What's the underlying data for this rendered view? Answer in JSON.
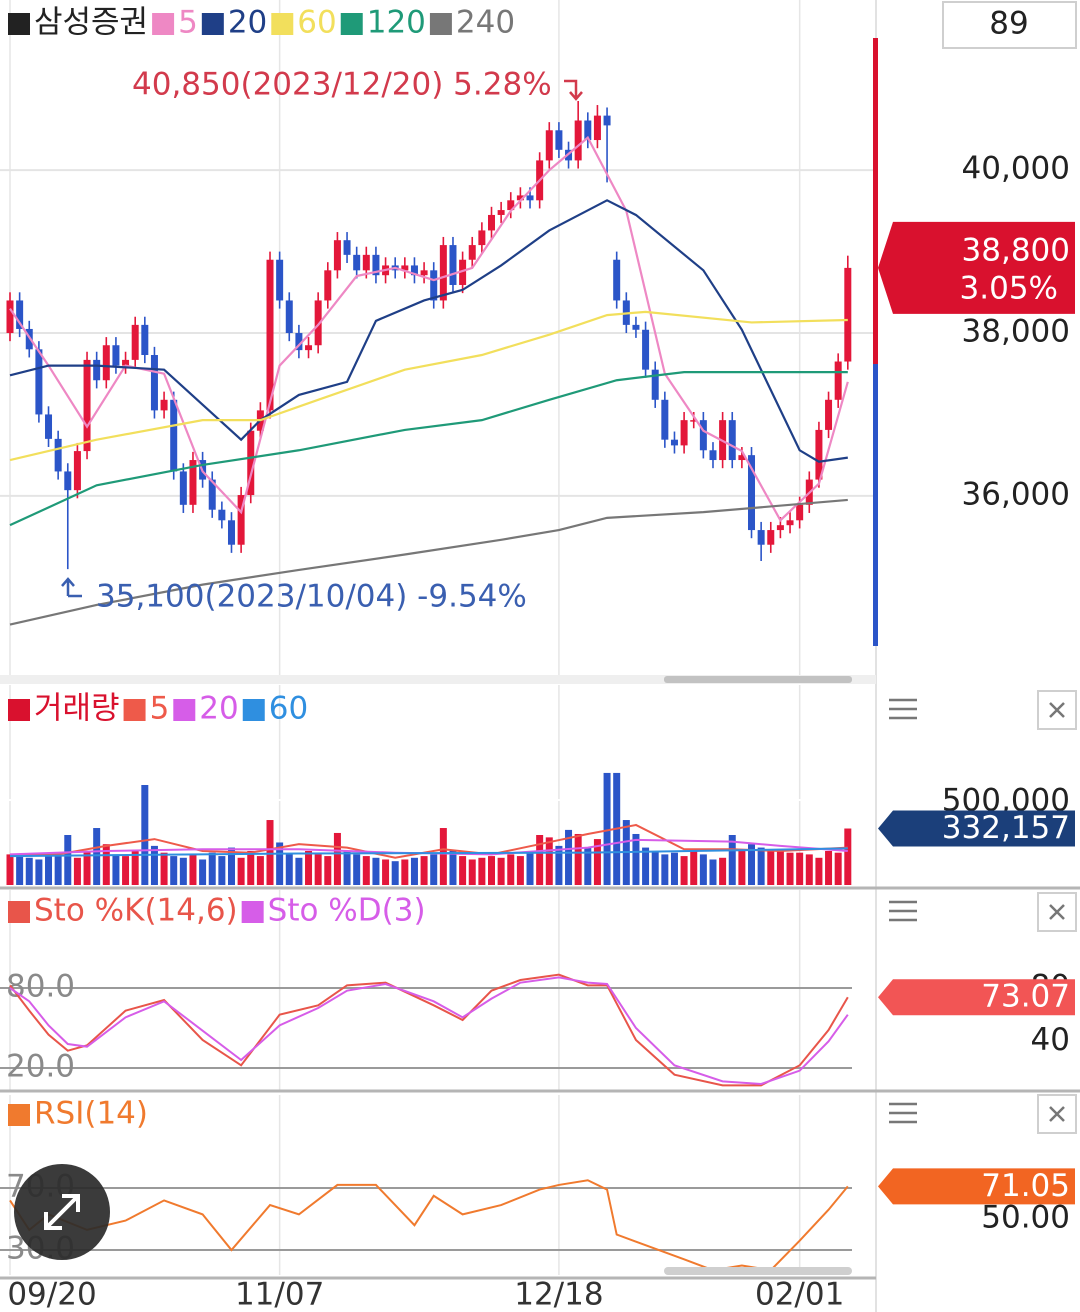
{
  "period": "89",
  "chart_data": [
    {
      "type": "candlestick",
      "name": "삼성증권",
      "name_color": "#222222",
      "up_color": "#e3173a",
      "down_color": "#2b55c8",
      "grid_color": "#e4e4e4",
      "ylim": [
        33800,
        42090
      ],
      "yticks": [
        {
          "value": 36000,
          "label": "36,000"
        },
        {
          "value": 38000,
          "label": "38,000"
        },
        {
          "value": 40000,
          "label": "40,000"
        }
      ],
      "ytick_side": "right",
      "open": [
        38000,
        38400,
        38050,
        37800,
        37000,
        36700,
        36300,
        36070,
        36550,
        37670,
        37420,
        37850,
        37600,
        37670,
        38100,
        37730,
        37050,
        37180,
        36300,
        35890,
        36440,
        36200,
        35830,
        35700,
        35400,
        36010,
        36800,
        37050,
        38900,
        38400,
        38000,
        37790,
        37850,
        38400,
        38770,
        39140,
        38960,
        38770,
        38960,
        38710,
        38830,
        38770,
        38830,
        38710,
        38770,
        38400,
        39080,
        38590,
        38900,
        39080,
        39260,
        39450,
        39510,
        39630,
        39690,
        39630,
        40120,
        40490,
        40250,
        40120,
        40610,
        40370,
        40670,
        38900,
        38400,
        38100,
        38040,
        37550,
        37180,
        36690,
        36620,
        36930,
        36930,
        36560,
        36440,
        36930,
        36440,
        36500,
        35580,
        35400,
        35580,
        35640,
        35700,
        35890,
        36200,
        36810,
        37180,
        37650
      ],
      "high": [
        38500,
        38500,
        38150,
        37900,
        37100,
        36800,
        36400,
        36650,
        37770,
        37770,
        37950,
        37950,
        37770,
        38200,
        38200,
        37830,
        37280,
        37280,
        36400,
        36540,
        36540,
        36300,
        35930,
        35800,
        36110,
        36900,
        37150,
        39000,
        39000,
        38500,
        38100,
        37950,
        38500,
        38870,
        39240,
        39240,
        39060,
        39060,
        39060,
        38930,
        38930,
        38930,
        38930,
        38870,
        38870,
        39180,
        39180,
        39000,
        39180,
        39360,
        39550,
        39610,
        39730,
        39790,
        39790,
        40220,
        40590,
        40590,
        40350,
        40850,
        40710,
        40800,
        40770,
        39000,
        38500,
        38200,
        38140,
        37650,
        37280,
        36790,
        37030,
        37030,
        37030,
        36660,
        37030,
        37030,
        36600,
        36600,
        35680,
        35680,
        35740,
        35800,
        35990,
        36300,
        36910,
        37280,
        37750,
        38950
      ],
      "low": [
        37900,
        37950,
        37700,
        36900,
        36600,
        36200,
        35100,
        35970,
        36450,
        37320,
        37320,
        37500,
        37500,
        37570,
        37630,
        36950,
        36950,
        36200,
        35790,
        35790,
        36100,
        35730,
        35600,
        35300,
        35300,
        35910,
        36700,
        36950,
        38300,
        37900,
        37690,
        37690,
        37750,
        38300,
        38670,
        38860,
        38670,
        38670,
        38610,
        38610,
        38670,
        38670,
        38610,
        38610,
        38300,
        38300,
        38490,
        38490,
        38800,
        38980,
        39160,
        39350,
        39410,
        39530,
        39530,
        39530,
        40020,
        40150,
        40020,
        40020,
        40270,
        40270,
        39850,
        38300,
        38000,
        37940,
        37450,
        37080,
        36590,
        36520,
        36520,
        36830,
        36460,
        36340,
        36340,
        36340,
        36340,
        35480,
        35200,
        35300,
        35480,
        35540,
        35600,
        35790,
        36100,
        36710,
        37080,
        37550
      ],
      "close": [
        38400,
        38050,
        37800,
        37000,
        36700,
        36300,
        36070,
        36550,
        37670,
        37420,
        37850,
        37600,
        37670,
        38100,
        37730,
        37050,
        37180,
        36300,
        35890,
        36440,
        36200,
        35830,
        35700,
        35400,
        36010,
        36800,
        37050,
        38900,
        38400,
        38000,
        37790,
        37850,
        38400,
        38770,
        39140,
        38960,
        38770,
        38960,
        38710,
        38830,
        38770,
        38830,
        38710,
        38770,
        38400,
        39080,
        38590,
        38900,
        39080,
        39260,
        39450,
        39510,
        39630,
        39690,
        39630,
        40120,
        40490,
        40250,
        40120,
        40610,
        40370,
        40670,
        40550,
        38400,
        38100,
        38040,
        37550,
        37180,
        36690,
        36620,
        36930,
        36930,
        36560,
        36440,
        36930,
        36440,
        36500,
        35580,
        35400,
        35580,
        35640,
        35700,
        35890,
        36200,
        36810,
        37180,
        37650,
        38800
      ],
      "series": [
        {
          "name": "5",
          "color": "#ee88c4",
          "x": [
            0,
            4,
            8,
            12,
            16,
            20,
            24,
            28,
            32,
            36,
            40,
            44,
            48,
            52,
            56,
            60,
            64,
            68,
            72,
            76,
            80,
            84,
            87
          ],
          "values": [
            38300,
            37600,
            36850,
            37600,
            37500,
            36300,
            35800,
            37600,
            38100,
            38700,
            38800,
            38650,
            38800,
            39500,
            40000,
            40400,
            39500,
            37500,
            36800,
            36550,
            35700,
            36150,
            37400
          ]
        },
        {
          "name": "20",
          "color": "#1f3f87",
          "x": [
            0,
            4,
            9,
            16,
            20,
            24,
            26,
            30,
            35,
            38,
            43,
            47,
            51,
            56,
            62,
            65,
            72,
            76,
            79,
            82,
            84,
            87
          ],
          "values": [
            37480,
            37600,
            37600,
            37550,
            37120,
            36690,
            36930,
            37240,
            37400,
            38150,
            38400,
            38530,
            38830,
            39260,
            39630,
            39450,
            38770,
            38040,
            37300,
            36560,
            36420,
            36470
          ]
        },
        {
          "name": "60",
          "color": "#f2df5c",
          "x": [
            0,
            9,
            20,
            26,
            32,
            41,
            49,
            56,
            62,
            66,
            77,
            87
          ],
          "values": [
            36440,
            36690,
            36930,
            36930,
            37180,
            37550,
            37730,
            37980,
            38220,
            38260,
            38130,
            38160
          ]
        },
        {
          "name": "120",
          "color": "#1f9a78",
          "x": [
            0,
            9,
            20,
            30,
            41,
            49,
            56,
            63,
            70,
            87
          ],
          "values": [
            35640,
            36130,
            36380,
            36560,
            36810,
            36930,
            37180,
            37420,
            37520,
            37520
          ]
        },
        {
          "name": "240",
          "color": "#777777",
          "x": [
            0,
            9,
            20,
            30,
            41,
            51,
            57,
            62,
            72,
            87
          ],
          "values": [
            34420,
            34660,
            34910,
            35090,
            35280,
            35460,
            35580,
            35730,
            35800,
            35950
          ]
        }
      ],
      "annotations": [
        "40,850(2023/12/20) 5.28%",
        "35,100(2023/10/04) -9.54%"
      ],
      "last": {
        "value": 38800,
        "label": "38,800"
      },
      "change": "3.05%",
      "badge_color": "#d9112e"
    },
    {
      "type": "bar",
      "name": "거래량",
      "name_color": "#d9112e",
      "grid_color": "#ffffff",
      "ylim": [
        0,
        1176000
      ],
      "yticks": [
        {
          "value": 500000,
          "label": "500,000"
        }
      ],
      "ytick_side": "right",
      "values": [
        180000,
        170000,
        160000,
        150000,
        190000,
        170000,
        294000,
        160000,
        200000,
        335000,
        240000,
        180000,
        170000,
        200000,
        588000,
        230000,
        190000,
        170000,
        160000,
        180000,
        150000,
        190000,
        170000,
        220000,
        160000,
        200000,
        170000,
        382000,
        250000,
        180000,
        160000,
        200000,
        180000,
        170000,
        306000,
        200000,
        180000,
        170000,
        160000,
        150000,
        140000,
        150000,
        160000,
        170000,
        180000,
        335000,
        200000,
        170000,
        150000,
        160000,
        170000,
        160000,
        180000,
        170000,
        190000,
        294000,
        280000,
        230000,
        324000,
        300000,
        220000,
        270000,
        659000,
        659000,
        382000,
        300000,
        220000,
        200000,
        180000,
        190000,
        170000,
        200000,
        180000,
        150000,
        160000,
        294000,
        200000,
        240000,
        220000,
        210000,
        200000,
        190000,
        190000,
        180000,
        160000,
        200000,
        190000,
        332157
      ],
      "series": [
        {
          "name": "5",
          "color": "#ee5a4a",
          "x": [
            0,
            5,
            10,
            15,
            20,
            25,
            30,
            35,
            40,
            45,
            50,
            55,
            60,
            65,
            70,
            75,
            80,
            87
          ],
          "values": [
            175000,
            180000,
            230000,
            270000,
            200000,
            190000,
            240000,
            220000,
            160000,
            210000,
            180000,
            240000,
            300000,
            353000,
            210000,
            210000,
            200000,
            220000
          ]
        },
        {
          "name": "20",
          "color": "#d65de8",
          "x": [
            0,
            10,
            20,
            30,
            40,
            50,
            60,
            65,
            70,
            75,
            80,
            87
          ],
          "values": [
            180000,
            200000,
            210000,
            210000,
            190000,
            180000,
            220000,
            265000,
            260000,
            255000,
            230000,
            200000
          ]
        },
        {
          "name": "60",
          "color": "#2f8fe0",
          "x": [
            0,
            30,
            60,
            87
          ],
          "values": [
            170000,
            185000,
            190000,
            215000
          ]
        }
      ],
      "last": {
        "value": 332157,
        "label": "332,157"
      },
      "badge_color": "#1b3f7a"
    },
    {
      "type": "line",
      "grid_color": "#9a9a9a",
      "ylim": [
        3.5,
        153.5
      ],
      "yticks": [
        {
          "value": 20,
          "label": "20.0"
        },
        {
          "value": 80,
          "label": "80.0"
        }
      ],
      "ytick_side": "left",
      "right_ticks": [
        40,
        80
      ],
      "series": [
        {
          "name": "Sto %K(14,6)",
          "color": "#e8554a",
          "x": [
            0,
            2,
            4,
            6,
            8,
            12,
            16,
            20,
            24,
            28,
            32,
            35,
            39,
            44,
            47,
            50,
            53,
            57,
            60,
            62,
            65,
            69,
            74,
            78,
            82,
            85,
            87
          ],
          "values": [
            82,
            63,
            45,
            33,
            37,
            63,
            71,
            41,
            22,
            60,
            67,
            82,
            84,
            67,
            56,
            78,
            86,
            90,
            82,
            82,
            41,
            15,
            7,
            7,
            22,
            48.5,
            73.07
          ]
        },
        {
          "name": "Sto %D(3)",
          "color": "#d65de8",
          "x": [
            0,
            2,
            4,
            6,
            8,
            12,
            16,
            20,
            24,
            28,
            32,
            35,
            39,
            44,
            47,
            50,
            53,
            57,
            60,
            62,
            65,
            69,
            74,
            78,
            82,
            85,
            87
          ],
          "values": [
            80,
            70,
            52,
            38,
            36,
            58,
            70,
            48,
            26,
            52,
            65,
            78,
            83,
            70,
            58,
            72,
            84,
            88,
            84,
            83,
            50,
            22,
            10,
            8,
            18,
            40,
            60
          ]
        }
      ],
      "last": {
        "value": 73.07,
        "label": "73.07"
      },
      "badge_color": "#f25555"
    },
    {
      "type": "line",
      "grid_color": "#9a9a9a",
      "ylim": [
        13.9,
        130
      ],
      "yticks": [
        {
          "value": 30,
          "label": "30.0"
        },
        {
          "value": 70,
          "label": "70.0"
        }
      ],
      "ytick_side": "left",
      "right_ticks": [
        {
          "value": 50,
          "label": "50.00"
        }
      ],
      "series": [
        {
          "name": "RSI(14)",
          "color": "#f07a2e",
          "x": [
            0,
            2,
            4,
            8,
            12,
            16,
            20,
            23,
            27,
            30,
            34,
            38,
            42,
            44,
            47,
            51,
            55,
            57,
            60,
            62,
            63,
            70,
            73,
            76,
            79,
            82,
            85,
            87
          ],
          "values": [
            62,
            43,
            53,
            43,
            49,
            62,
            53,
            30,
            59,
            53,
            72,
            72,
            46,
            65,
            53,
            59,
            69,
            72,
            75,
            69,
            40,
            24,
            17,
            20,
            17,
            36,
            56,
            71.05
          ]
        }
      ],
      "last": 71.05,
      "badge_color": "#f26522",
      "xticks": [
        {
          "value": 0,
          "label": "09/20"
        },
        {
          "value": 28,
          "label": "11/07"
        },
        {
          "value": 57,
          "label": "12/18"
        },
        {
          "value": 82,
          "label": "02/01"
        }
      ]
    }
  ]
}
